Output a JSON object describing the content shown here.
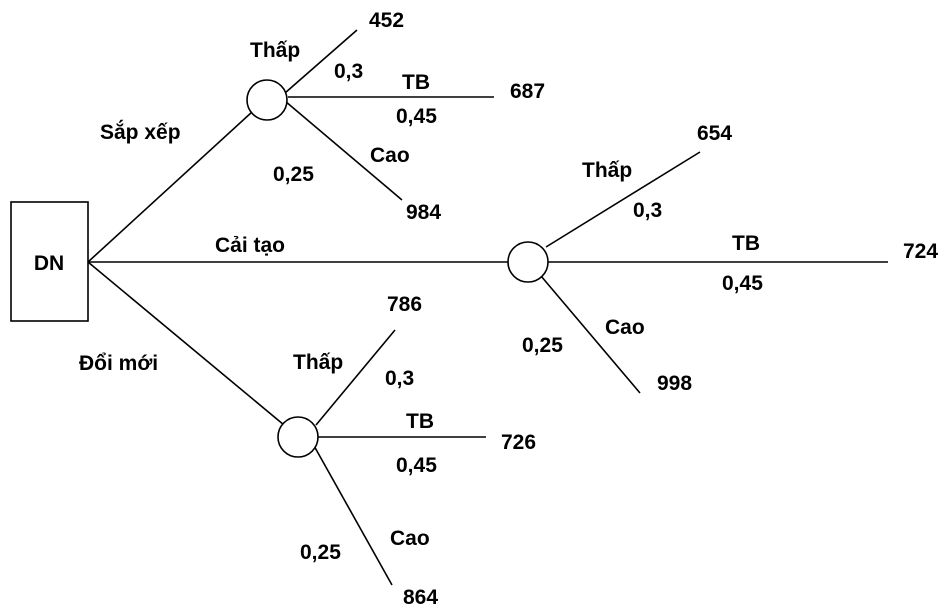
{
  "root": {
    "label": "DN"
  },
  "branches": [
    {
      "decision": "Sắp xếp",
      "outcomes": [
        {
          "state": "Thấp",
          "probability": "0,3",
          "value": "452"
        },
        {
          "state": "TB",
          "probability": "0,45",
          "value": "687"
        },
        {
          "state": "Cao",
          "probability": "0,25",
          "value": "984"
        }
      ]
    },
    {
      "decision": "Cải tạo",
      "outcomes": [
        {
          "state": "Thấp",
          "probability": "0,3",
          "value": "654"
        },
        {
          "state": "TB",
          "probability": "0,45",
          "value": "724"
        },
        {
          "state": "Cao",
          "probability": "0,25",
          "value": "998"
        }
      ]
    },
    {
      "decision": "Đổi mới",
      "outcomes": [
        {
          "state": "Thấp",
          "probability": "0,3",
          "value": "786"
        },
        {
          "state": "TB",
          "probability": "0,45",
          "value": "726"
        },
        {
          "state": "Cao",
          "probability": "0,25",
          "value": "864"
        }
      ]
    }
  ]
}
